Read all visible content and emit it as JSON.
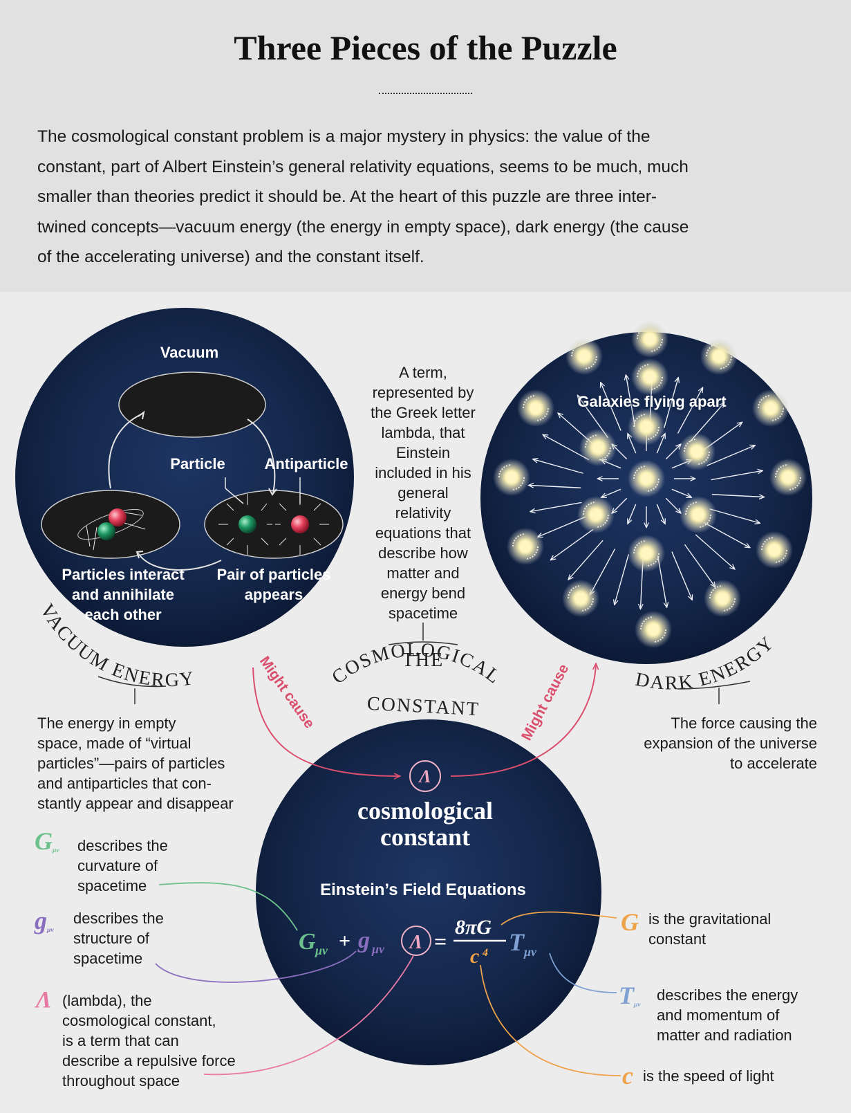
{
  "title": "Three Pieces of the Puzzle",
  "intro_lines": [
    "The cosmological constant problem is a major mystery in physics: the value of the",
    "constant, part of Albert Einstein’s general relativity equations, seems to be much, much",
    "smaller than theories predict it should be. At the heart of this puzzle are three inter-",
    "twined concepts—vacuum energy (the energy in empty space), dark energy (the cause",
    "of the accelerating universe) and the constant itself."
  ],
  "vacuum_panel": {
    "vacuum_label": "Vacuum",
    "particle_label": "Particle",
    "antiparticle_label": "Antiparticle",
    "interact_lines": [
      "Particles interact",
      "and annihilate",
      "each other"
    ],
    "pair_lines": [
      "Pair of particles",
      "appears"
    ],
    "arc_title": "VACUUM ENERGY",
    "description_lines": [
      "The energy in empty",
      "space, made of “virtual",
      "particles”—pairs of particles",
      "and antiparticles that con-",
      "stantly appear and disappear"
    ]
  },
  "lambda_description_lines": [
    "A term,",
    "represented by",
    "the Greek letter",
    "lambda, that",
    "Einstein",
    "included in his",
    "general",
    "relativity",
    "equations that",
    "describe how",
    "matter and",
    "energy bend",
    "spacetime"
  ],
  "constant_arc_title": {
    "line1": "THE",
    "line2": "COSMOLOGICAL",
    "line3": "CONSTANT"
  },
  "dark_panel": {
    "galaxies_label": "Galaxies flying apart",
    "arc_title": "DARK ENERGY",
    "description_lines": [
      "The force causing the",
      "expansion of the universe",
      "to accelerate"
    ]
  },
  "arrows": {
    "left_label": "Might cause",
    "right_label": "Might cause"
  },
  "center": {
    "lambda_symbol": "Λ",
    "title_lines": [
      "cosmological",
      "constant"
    ],
    "equation_title": "Einstein’s Field Equations",
    "equation": {
      "G": "G",
      "sub_mu_nu": "μν",
      "plus": "+",
      "g": "g",
      "lambda": "Λ",
      "equals": "=",
      "numerator": "8πG",
      "denominator": "c",
      "power": "4",
      "T": "T"
    }
  },
  "legend": {
    "G_mu_nu": {
      "symbol": "G",
      "sub": "μν",
      "lines": [
        "describes the",
        "curvature of",
        "spacetime"
      ],
      "color": "#6cc08b"
    },
    "g_mu_nu": {
      "symbol": "g",
      "sub": "μν",
      "lines": [
        "describes the",
        "structure of",
        "spacetime"
      ],
      "color": "#8a6fbf"
    },
    "lambda": {
      "symbol": "Λ",
      "lines": [
        "(lambda), the",
        "cosmological constant,",
        "is a term that can",
        "describe a repulsive force",
        "throughout space"
      ],
      "color": "#e87aa4"
    },
    "G": {
      "symbol": "G",
      "lines": [
        "is the gravitational",
        "constant"
      ],
      "color": "#eea24a"
    },
    "T_mu_nu": {
      "symbol": "T",
      "sub": "μν",
      "lines": [
        "describes the energy",
        "and momentum of",
        "matter and radiation"
      ],
      "color": "#7fa0d2"
    },
    "c": {
      "symbol": "c",
      "text": "is the speed of light",
      "color": "#eea24a"
    }
  }
}
